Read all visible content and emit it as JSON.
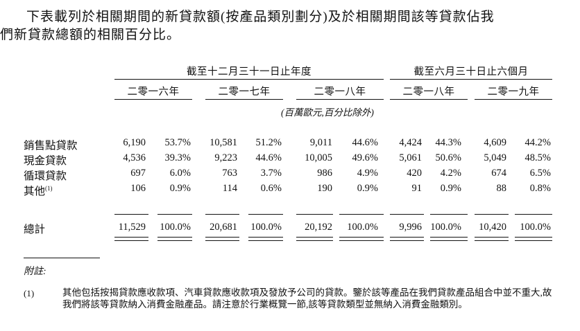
{
  "intro": {
    "line1": "下表載列於相關期間的新貸款額(按產品類別劃分)及於相關期間該等貸款佔我",
    "line2": "們新貸款總額的相關百分比。"
  },
  "table": {
    "group_headers": [
      "截至十二月三十一日止年度",
      "截至六月三十日止六個月"
    ],
    "period_headers": [
      "二零一六年",
      "二零一七年",
      "二零一八年",
      "二零一八年",
      "二零一九年"
    ],
    "unit_note": "(百萬歐元,百分比除外)",
    "rows": [
      {
        "label": "銷售點貸款",
        "sup": "",
        "values": [
          "6,190",
          "53.7%",
          "10,581",
          "51.2%",
          "9,011",
          "44.6%",
          "4,424",
          "44.3%",
          "4,609",
          "44.2%"
        ]
      },
      {
        "label": "現金貸款",
        "sup": "",
        "values": [
          "4,536",
          "39.3%",
          "9,223",
          "44.6%",
          "10,005",
          "49.6%",
          "5,061",
          "50.6%",
          "5,049",
          "48.5%"
        ]
      },
      {
        "label": "循環貸款",
        "sup": "",
        "values": [
          "697",
          "6.0%",
          "763",
          "3.7%",
          "986",
          "4.9%",
          "420",
          "4.2%",
          "674",
          "6.5%"
        ]
      },
      {
        "label": "其他",
        "sup": "(1)",
        "values": [
          "106",
          "0.9%",
          "114",
          "0.6%",
          "190",
          "0.9%",
          "91",
          "0.9%",
          "88",
          "0.8%"
        ]
      }
    ],
    "total": {
      "label": "總計",
      "values": [
        "11,529",
        "100.0%",
        "20,681",
        "100.0%",
        "20,192",
        "100.0%",
        "9,996",
        "100.0%",
        "10,420",
        "100.0%"
      ]
    }
  },
  "notes": {
    "heading": "附註:",
    "items": [
      {
        "marker": "(1)",
        "text": "其他包括按揭貸款應收款項、汽車貸款應收款項及發放予公司的貸款。鑒於該等產品在我們貸款產品組合中並不重大,故我們將該等貸款納入消費金融產品。請注意於行業概覽一節,該等貸款類型並無納入消費金融類別。"
      }
    ]
  }
}
